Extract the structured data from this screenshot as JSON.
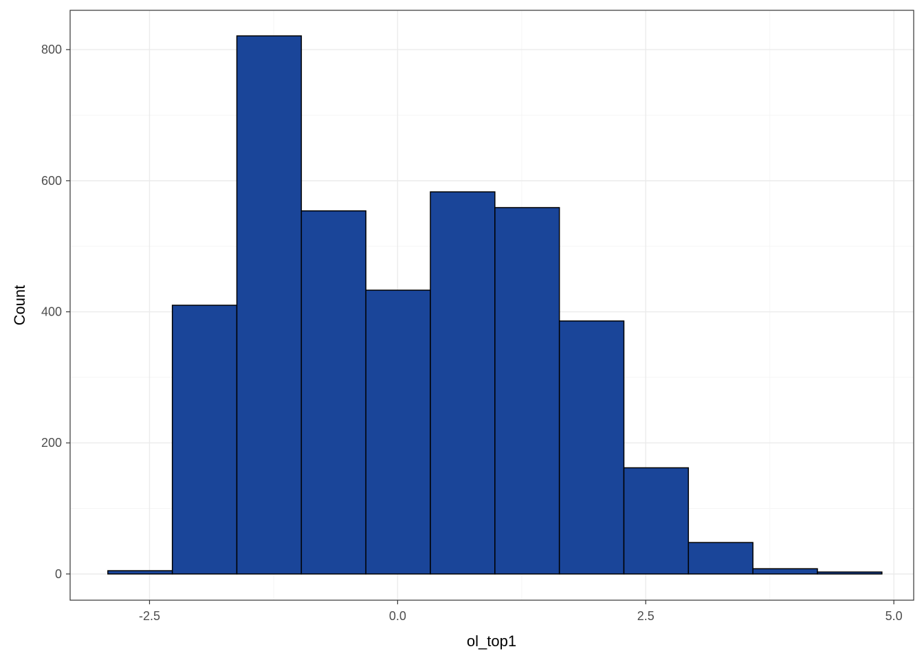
{
  "chart_data": {
    "type": "bar",
    "subtype": "histogram",
    "title": "",
    "xlabel": "ol_top1",
    "ylabel": "Count",
    "xlim": [
      -3.3,
      5.2
    ],
    "ylim": [
      -40,
      860
    ],
    "x_ticks": [
      -2.5,
      0.0,
      2.5,
      5.0
    ],
    "x_tick_labels": [
      "-2.5",
      "0.0",
      "2.5",
      "5.0"
    ],
    "x_minor_ticks": [
      -1.25,
      1.25,
      3.75
    ],
    "y_ticks": [
      0,
      200,
      400,
      600,
      800
    ],
    "y_tick_labels": [
      "0",
      "200",
      "400",
      "600",
      "800"
    ],
    "y_minor_ticks": [
      100,
      300,
      500,
      700
    ],
    "bins": [
      {
        "x0": -2.92,
        "x1": -2.27,
        "count": 5
      },
      {
        "x0": -2.27,
        "x1": -1.62,
        "count": 410
      },
      {
        "x0": -1.62,
        "x1": -0.97,
        "count": 821
      },
      {
        "x0": -0.97,
        "x1": -0.32,
        "count": 554
      },
      {
        "x0": -0.32,
        "x1": 0.33,
        "count": 433
      },
      {
        "x0": 0.33,
        "x1": 0.98,
        "count": 583
      },
      {
        "x0": 0.98,
        "x1": 1.63,
        "count": 559
      },
      {
        "x0": 1.63,
        "x1": 2.28,
        "count": 386
      },
      {
        "x0": 2.28,
        "x1": 2.93,
        "count": 162
      },
      {
        "x0": 2.93,
        "x1": 3.58,
        "count": 48
      },
      {
        "x0": 3.58,
        "x1": 4.23,
        "count": 8
      },
      {
        "x0": 4.23,
        "x1": 4.88,
        "count": 3
      }
    ],
    "grid": true,
    "legend": "none",
    "colors": {
      "bar_fill": "#1a4599",
      "bar_stroke": "#000000",
      "grid_major": "#ebebeb",
      "grid_minor": "#f5f5f5",
      "panel_border": "#333333",
      "background": "#ffffff"
    }
  }
}
